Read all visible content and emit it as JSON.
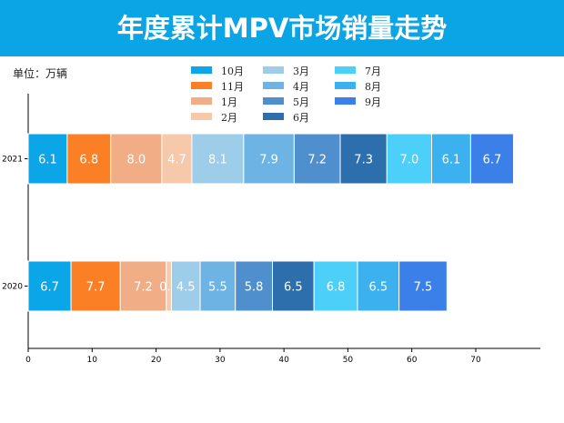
{
  "header": {
    "title": "年度累计MPV市场销量走势",
    "unit": "单位：万辆"
  },
  "chart_data": {
    "type": "bar",
    "orientation": "horizontal",
    "stacked": true,
    "categories": [
      "2021",
      "2020"
    ],
    "xlim": [
      0,
      80
    ],
    "xticks": [
      0,
      10,
      20,
      30,
      40,
      50,
      60,
      70
    ],
    "legend_position": "top-center",
    "series": [
      {
        "name": "10月",
        "color": "#0ba6e8",
        "values": [
          6.1,
          6.7
        ]
      },
      {
        "name": "11月",
        "color": "#fb7f24",
        "values": [
          6.8,
          7.7
        ]
      },
      {
        "name": "1月",
        "color": "#f1ae86",
        "values": [
          8.0,
          7.2
        ]
      },
      {
        "name": "2月",
        "color": "#f6c9aa",
        "values": [
          4.7,
          0.8
        ]
      },
      {
        "name": "3月",
        "color": "#9ecde9",
        "values": [
          8.1,
          4.5
        ]
      },
      {
        "name": "4月",
        "color": "#6db3e4",
        "values": [
          7.9,
          5.5
        ]
      },
      {
        "name": "5月",
        "color": "#4f8fcd",
        "values": [
          7.2,
          5.8
        ]
      },
      {
        "name": "6月",
        "color": "#2d6ead",
        "values": [
          7.3,
          6.5
        ]
      },
      {
        "name": "7月",
        "color": "#4ccff8",
        "values": [
          7.0,
          6.8
        ]
      },
      {
        "name": "8月",
        "color": "#3bb1ef",
        "values": [
          6.1,
          6.5
        ]
      },
      {
        "name": "9月",
        "color": "#3b80e8",
        "values": [
          6.7,
          7.5
        ]
      }
    ]
  }
}
